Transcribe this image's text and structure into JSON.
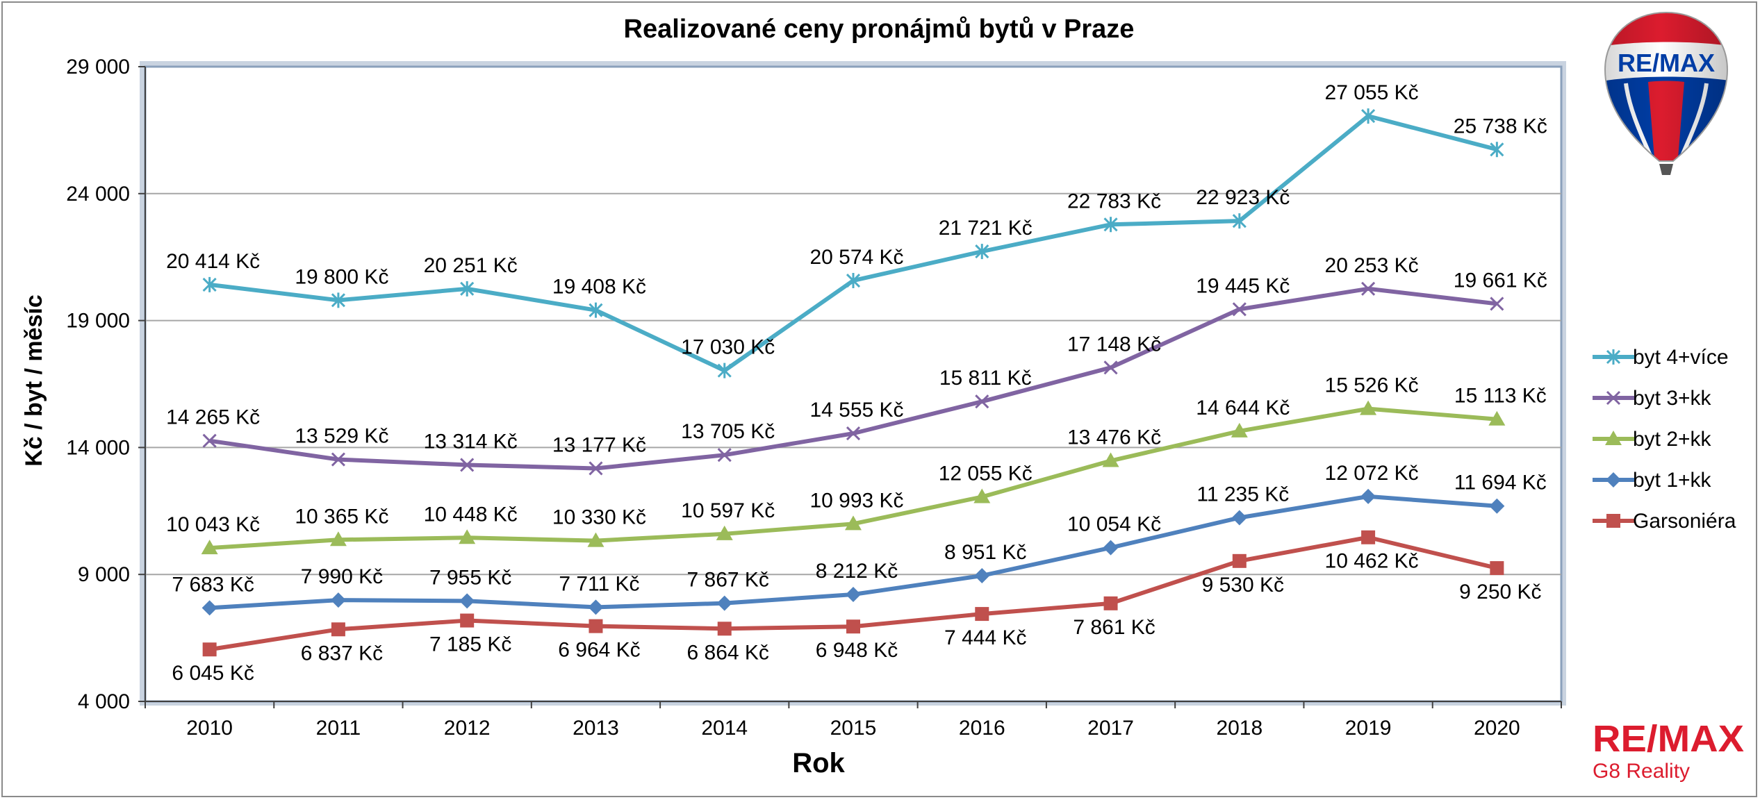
{
  "chart_data": {
    "type": "line",
    "title": "Realizované ceny pronájmů bytů v Praze",
    "xlabel": "Rok",
    "ylabel": "Kč / byt / měsíc",
    "categories": [
      "2010",
      "2011",
      "2012",
      "2013",
      "2014",
      "2015",
      "2016",
      "2017",
      "2018",
      "2019",
      "2020"
    ],
    "ylim": [
      4000,
      29000
    ],
    "yticks": [
      4000,
      9000,
      14000,
      19000,
      24000,
      29000
    ],
    "ytick_labels": [
      "4 000",
      "9 000",
      "14 000",
      "19 000",
      "24 000",
      "29 000"
    ],
    "grid": true,
    "legend_position": "right",
    "series": [
      {
        "name": "byt 4+více",
        "color": "#4bacc6",
        "marker": "star",
        "values": [
          20414,
          19800,
          20251,
          19408,
          17030,
          20574,
          21721,
          22783,
          22923,
          27055,
          25738
        ],
        "labels": [
          "20 414 Kč",
          "19 800 Kč",
          "20 251 Kč",
          "19 408 Kč",
          "17 030 Kč",
          "20 574 Kč",
          "21 721 Kč",
          "22 783 Kč",
          "22 923 Kč",
          "27 055 Kč",
          "25 738 Kč"
        ],
        "label_position": "above"
      },
      {
        "name": "byt 3+kk",
        "color": "#8064a2",
        "marker": "x",
        "values": [
          14265,
          13529,
          13314,
          13177,
          13705,
          14555,
          15811,
          17148,
          19445,
          20253,
          19661
        ],
        "labels": [
          "14 265 Kč",
          "13 529 Kč",
          "13 314 Kč",
          "13 177 Kč",
          "13 705 Kč",
          "14 555 Kč",
          "15 811 Kč",
          "17 148 Kč",
          "19 445 Kč",
          "20 253 Kč",
          "19 661 Kč"
        ],
        "label_position": "above"
      },
      {
        "name": "byt 2+kk",
        "color": "#9bbb59",
        "marker": "triangle",
        "values": [
          10043,
          10365,
          10448,
          10330,
          10597,
          10993,
          12055,
          13476,
          14644,
          15526,
          15113
        ],
        "labels": [
          "10 043 Kč",
          "10 365 Kč",
          "10 448 Kč",
          "10 330 Kč",
          "10 597 Kč",
          "10 993 Kč",
          "12 055 Kč",
          "13 476 Kč",
          "14 644 Kč",
          "15 526 Kč",
          "15 113 Kč"
        ],
        "label_position": "above"
      },
      {
        "name": "byt 1+kk",
        "color": "#4f81bd",
        "marker": "diamond",
        "values": [
          7683,
          7990,
          7955,
          7711,
          7867,
          8212,
          8951,
          10054,
          11235,
          12072,
          11694
        ],
        "labels": [
          "7 683 Kč",
          "7 990 Kč",
          "7 955 Kč",
          "7 711 Kč",
          "7 867 Kč",
          "8 212 Kč",
          "8 951 Kč",
          "10 054 Kč",
          "11 235 Kč",
          "12 072 Kč",
          "11 694 Kč"
        ],
        "label_position": "above"
      },
      {
        "name": "Garsoniéra",
        "color": "#c0504d",
        "marker": "square",
        "values": [
          6045,
          6837,
          7185,
          6964,
          6864,
          6948,
          7444,
          7861,
          9530,
          10462,
          9250
        ],
        "labels": [
          "6 045 Kč",
          "6 837 Kč",
          "7 185 Kč",
          "6 964 Kč",
          "6 864 Kč",
          "6 948 Kč",
          "7 444 Kč",
          "7 861 Kč",
          "9 530 Kč",
          "10 462 Kč",
          "9 250 Kč"
        ],
        "label_position": "below"
      }
    ]
  },
  "branding": {
    "balloon_text": "RE/MAX",
    "logo_text": "RE/MAX",
    "office_name": "G8 Reality",
    "red": "#dc1c2e",
    "blue": "#003da5"
  }
}
